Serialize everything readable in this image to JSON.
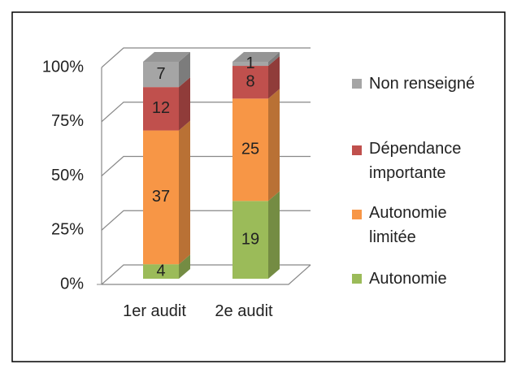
{
  "chart_data": {
    "type": "bar",
    "stacked": "percent",
    "categories": [
      "1er audit",
      "2e audit"
    ],
    "series": [
      {
        "name": "Autonomie",
        "color": "#9bbb59",
        "values": [
          4,
          19
        ]
      },
      {
        "name": "Autonomie limitée",
        "color": "#f79646",
        "values": [
          37,
          25
        ]
      },
      {
        "name": "Dépendance importante",
        "color": "#c0504d",
        "values": [
          12,
          8
        ]
      },
      {
        "name": "Non renseigné",
        "color": "#a5a5a5",
        "values": [
          7,
          1
        ]
      }
    ],
    "ylim": [
      0,
      100
    ],
    "yticks": [
      {
        "value": 0,
        "label": "0%"
      },
      {
        "value": 25,
        "label": "25%"
      },
      {
        "value": 50,
        "label": "50%"
      },
      {
        "value": 75,
        "label": "75%"
      },
      {
        "value": 100,
        "label": "100%"
      }
    ],
    "grid": true,
    "legend": "right"
  }
}
